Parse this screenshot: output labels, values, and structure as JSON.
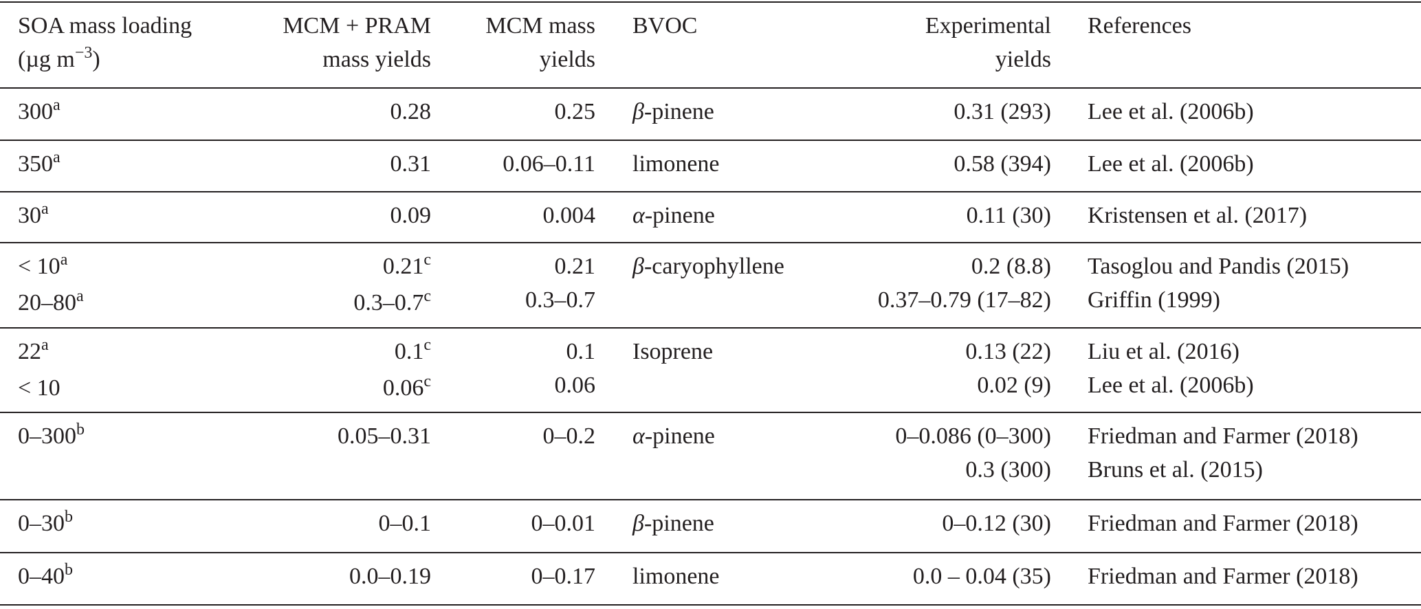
{
  "table": {
    "header": [
      [
        [
          "SOA mass loading"
        ],
        [
          "(µg m",
          {
            "sup": "−3"
          },
          ")"
        ]
      ],
      [
        [
          "MCM + PRAM"
        ],
        [
          "mass yields"
        ]
      ],
      [
        [
          "MCM mass"
        ],
        [
          "yields"
        ]
      ],
      [
        [
          "BVOC"
        ]
      ],
      [
        [
          "Experimental"
        ],
        [
          "yields"
        ]
      ],
      [
        [
          "References"
        ]
      ]
    ],
    "rows": [
      [
        [
          [
            "300",
            {
              "sup": "a"
            }
          ]
        ],
        [
          [
            "0.28"
          ]
        ],
        [
          [
            "0.25"
          ]
        ],
        [
          [
            "β-pinene"
          ]
        ],
        [
          [
            "0.31 (293)"
          ]
        ],
        [
          [
            "Lee et al. (2006b)"
          ]
        ]
      ],
      [
        [
          [
            "350",
            {
              "sup": "a"
            }
          ]
        ],
        [
          [
            "0.31"
          ]
        ],
        [
          [
            "0.06–0.11"
          ]
        ],
        [
          [
            "limonene"
          ]
        ],
        [
          [
            "0.58 (394)"
          ]
        ],
        [
          [
            "Lee et al. (2006b)"
          ]
        ]
      ],
      [
        [
          [
            "30",
            {
              "sup": "a"
            }
          ]
        ],
        [
          [
            "0.09"
          ]
        ],
        [
          [
            "0.004"
          ]
        ],
        [
          [
            "α-pinene"
          ]
        ],
        [
          [
            "0.11 (30)"
          ]
        ],
        [
          [
            "Kristensen et al. (2017)"
          ]
        ]
      ],
      [
        [
          [
            "< 10",
            {
              "sup": "a"
            }
          ],
          [
            "20–80",
            {
              "sup": "a"
            }
          ]
        ],
        [
          [
            "0.21",
            {
              "sup": "c"
            }
          ],
          [
            "0.3–0.7",
            {
              "sup": "c"
            }
          ]
        ],
        [
          [
            "0.21"
          ],
          [
            "0.3–0.7"
          ]
        ],
        [
          [
            "β-caryophyllene"
          ]
        ],
        [
          [
            "0.2 (8.8)"
          ],
          [
            "0.37–0.79 (17–82)"
          ]
        ],
        [
          [
            "Tasoglou and Pandis (2015)"
          ],
          [
            "Griffin (1999)"
          ]
        ]
      ],
      [
        [
          [
            "22",
            {
              "sup": "a"
            }
          ],
          [
            "< 10"
          ]
        ],
        [
          [
            "0.1",
            {
              "sup": "c"
            }
          ],
          [
            "0.06",
            {
              "sup": "c"
            }
          ]
        ],
        [
          [
            "0.1"
          ],
          [
            "0.06"
          ]
        ],
        [
          [
            "Isoprene"
          ]
        ],
        [
          [
            "0.13 (22)"
          ],
          [
            "0.02 (9)"
          ]
        ],
        [
          [
            "Liu et al. (2016)"
          ],
          [
            "Lee et al. (2006b)"
          ]
        ]
      ],
      [
        [
          [
            "0–300",
            {
              "sup": "b"
            }
          ]
        ],
        [
          [
            "0.05–0.31"
          ]
        ],
        [
          [
            "0–0.2"
          ]
        ],
        [
          [
            "α-pinene"
          ]
        ],
        [
          [
            "0–0.086 (0–300)"
          ],
          [
            "0.3 (300)"
          ]
        ],
        [
          [
            "Friedman and Farmer (2018)"
          ],
          [
            "Bruns et al. (2015)"
          ]
        ]
      ],
      [
        [
          [
            "0–30",
            {
              "sup": "b"
            }
          ]
        ],
        [
          [
            "0–0.1"
          ]
        ],
        [
          [
            "0–0.01"
          ]
        ],
        [
          [
            "β-pinene"
          ]
        ],
        [
          [
            "0–0.12 (30)"
          ]
        ],
        [
          [
            "Friedman and Farmer (2018)"
          ]
        ]
      ],
      [
        [
          [
            "0–40",
            {
              "sup": "b"
            }
          ]
        ],
        [
          [
            "0.0–0.19"
          ]
        ],
        [
          [
            "0–0.17"
          ]
        ],
        [
          [
            "limonene"
          ]
        ],
        [
          [
            "0.0 – 0.04 (35)"
          ]
        ],
        [
          [
            "Friedman and Farmer (2018)"
          ]
        ]
      ]
    ]
  }
}
